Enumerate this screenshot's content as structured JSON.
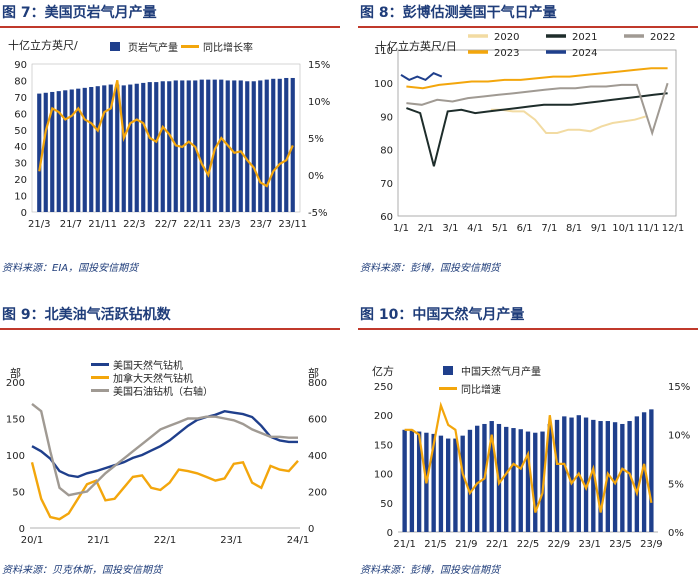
{
  "colors": {
    "title": "#1f3d7a",
    "rule": "#c0392b",
    "navy": "#1f3f8c",
    "gold": "#f3a60c",
    "gray": "#a09a93",
    "black": "#1e2d2b",
    "lightgold": "#f2dba2"
  },
  "charts": [
    {
      "title": "图 7：美国页岩气月产量",
      "source": "资料来源：EIA，国投安信期货",
      "chart_data": {
        "type": "bar+line",
        "ylabel_left": "十亿立方英尺/",
        "ylim_left": [
          0,
          90
        ],
        "yticks_left": [
          "0",
          "10",
          "20",
          "30",
          "40",
          "50",
          "60",
          "70",
          "80",
          "90"
        ],
        "ylim_right": [
          -5,
          15
        ],
        "yticks_right": [
          "-5%",
          "0%",
          "5%",
          "10%",
          "15%"
        ],
        "xticks": [
          "21/3",
          "21/7",
          "21/11",
          "22/3",
          "22/7",
          "22/11",
          "23/3",
          "23/7",
          "23/11"
        ],
        "series": [
          {
            "name": "页岩气产量",
            "kind": "bar",
            "axis": "left",
            "values": [
              72,
              72.5,
              73,
              73.5,
              74,
              74.5,
              75,
              75.5,
              76,
              76.5,
              77,
              77.5,
              77.5,
              77,
              77.5,
              78,
              78.5,
              79,
              79,
              79.5,
              79.5,
              80,
              80,
              80,
              80,
              80.5,
              80.5,
              80.5,
              80.5,
              80,
              80,
              80,
              79.5,
              79.5,
              80,
              80.5,
              81,
              81,
              81.5,
              81.5
            ]
          },
          {
            "name": "同比增长率",
            "kind": "line",
            "axis": "right",
            "values": [
              0.5,
              6,
              9,
              8.5,
              7.5,
              8,
              9,
              7.5,
              7,
              6,
              8.5,
              9,
              12.8,
              5,
              7,
              7.5,
              7,
              5,
              4.5,
              6.5,
              5.5,
              4,
              3.8,
              4.5,
              3.8,
              1.5,
              0,
              3.5,
              5,
              4,
              3,
              3.2,
              2,
              1,
              -1,
              -1.5,
              0.5,
              1.5,
              2,
              4
            ]
          }
        ]
      }
    },
    {
      "title": "图 8：彭博估测美国干气日产量",
      "source": "资料来源：彭博，国投安信期货",
      "chart_data": {
        "type": "line",
        "ylabel": "十亿立方英尺/日",
        "ylim": [
          60,
          110
        ],
        "yticks": [
          "60",
          "70",
          "80",
          "90",
          "100",
          "110"
        ],
        "xticks": [
          "1/1",
          "2/1",
          "3/1",
          "4/1",
          "5/1",
          "6/1",
          "7/1",
          "8/1",
          "9/1",
          "10/1",
          "11/1",
          "12/1"
        ],
        "series": [
          {
            "name": "2020",
            "color_key": "lightgold",
            "values": [
              92,
              92,
              91.5,
              91.5,
              89,
              85,
              85,
              86,
              86,
              85.5,
              87,
              88,
              88.5,
              89,
              90
            ]
          },
          {
            "name": "2021",
            "color_key": "black",
            "values": [
              92.5,
              91,
              75,
              91.5,
              92,
              91,
              91.5,
              92,
              92.5,
              93,
              93.5,
              93.5,
              93.5,
              94,
              94.5,
              95,
              95.5,
              96,
              96.5,
              97
            ]
          },
          {
            "name": "2022",
            "color_key": "gray",
            "values": [
              94,
              93.5,
              95,
              94.5,
              95.5,
              96,
              96.5,
              97,
              97.5,
              98,
              98.5,
              98.5,
              99,
              99,
              99.5,
              99.5,
              85,
              100
            ]
          },
          {
            "name": "2023",
            "color_key": "gold",
            "values": [
              99,
              98.5,
              99.5,
              100,
              100.5,
              100.5,
              101,
              101,
              101.5,
              102,
              102,
              102.5,
              103,
              103.5,
              104,
              104.5,
              104.5
            ]
          },
          {
            "name": "2024",
            "color_key": "navy",
            "values": [
              102.5,
              101,
              102,
              101,
              103,
              102
            ]
          }
        ]
      }
    },
    {
      "title": "图 9：北美油气活跃钻机数",
      "source": "资料来源：贝克休斯，国投安信期货",
      "chart_data": {
        "type": "line",
        "ylabel_left": "部",
        "ylabel_right": "部",
        "ylim_left": [
          0,
          200
        ],
        "yticks_left": [
          "0",
          "50",
          "100",
          "150",
          "200"
        ],
        "ylim_right": [
          0,
          800
        ],
        "yticks_right": [
          "0",
          "200",
          "400",
          "600",
          "800"
        ],
        "xticks": [
          "20/1",
          "21/1",
          "22/1",
          "23/1",
          "24/1"
        ],
        "series": [
          {
            "name": "美国天然气钻机",
            "color_key": "navy",
            "axis": "left",
            "values": [
              112,
              105,
              95,
              78,
              72,
              70,
              75,
              78,
              82,
              86,
              90,
              96,
              100,
              106,
              112,
              120,
              130,
              140,
              148,
              152,
              155,
              160,
              158,
              156,
              152,
              140,
              125,
              120,
              118,
              118
            ]
          },
          {
            "name": "加拿大天然气钻机",
            "color_key": "gold",
            "axis": "left",
            "values": [
              90,
              40,
              15,
              12,
              20,
              40,
              60,
              65,
              38,
              40,
              55,
              70,
              72,
              55,
              52,
              62,
              80,
              78,
              75,
              70,
              65,
              68,
              88,
              90,
              62,
              55,
              85,
              80,
              78,
              92
            ]
          },
          {
            "name": "美国石油钻机（右轴）",
            "color_key": "gray",
            "axis": "right",
            "values": [
              680,
              640,
              420,
              220,
              180,
              190,
              200,
              250,
              300,
              340,
              380,
              420,
              460,
              500,
              540,
              560,
              580,
              600,
              600,
              610,
              610,
              600,
              590,
              570,
              540,
              520,
              500,
              500,
              495,
              495
            ]
          }
        ]
      }
    },
    {
      "title": "图 10：中国天然气月产量",
      "source": "资料来源：彭博，国投安信期货",
      "chart_data": {
        "type": "bar+line",
        "ylabel_left": "亿方",
        "ylim_left": [
          0,
          250
        ],
        "yticks_left": [
          "0",
          "50",
          "100",
          "150",
          "200",
          "250"
        ],
        "ylim_right": [
          0,
          15
        ],
        "yticks_right": [
          "0%",
          "5%",
          "10%",
          "15%"
        ],
        "xticks": [
          "21/1",
          "21/5",
          "21/9",
          "22/1",
          "22/5",
          "22/9",
          "23/1",
          "23/5",
          "23/9"
        ],
        "series": [
          {
            "name": "中国天然气月产量",
            "kind": "bar",
            "axis": "left",
            "values": [
              175,
              175,
              172,
              170,
              168,
              165,
              160,
              160,
              165,
              175,
              182,
              185,
              190,
              185,
              180,
              178,
              176,
              172,
              170,
              172,
              185,
              192,
              198,
              196,
              200,
              196,
              192,
              190,
              190,
              188,
              185,
              190,
              198,
              205,
              210
            ]
          },
          {
            "name": "同比增速",
            "kind": "line",
            "axis": "right",
            "values": [
              10.5,
              10.5,
              10,
              5,
              9,
              13,
              11,
              10.5,
              6,
              4,
              5,
              5.5,
              10,
              5,
              6,
              7,
              6.5,
              8,
              2,
              4,
              12,
              7,
              7,
              5,
              6,
              4.5,
              6.5,
              2,
              6,
              5,
              6.5,
              6,
              4,
              7,
              3
            ]
          }
        ]
      }
    }
  ]
}
